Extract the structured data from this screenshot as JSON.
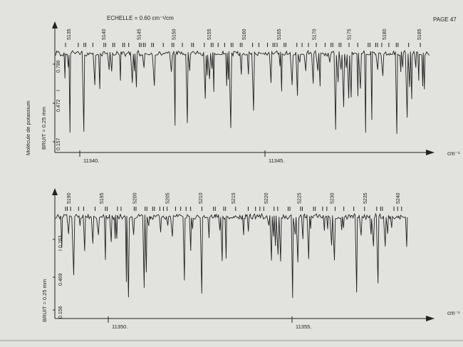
{
  "header": {
    "scale_label": "ECHELLE = 0.60 cm⁻¹/cm",
    "page_number": "PAGE 47"
  },
  "colors": {
    "background": "#e2e2df",
    "ink": "#222222"
  },
  "chart_data": [
    {
      "type": "line",
      "title": "",
      "side_label": "Molécule de potassium",
      "noise_label": "BRUIT = 0.25 mm",
      "intensity_symbol": "I",
      "xlabel": "cm⁻¹",
      "x_ticks": [
        "11340.",
        "11345."
      ],
      "y_ticks": [
        "0.786",
        "0.472",
        "0.157"
      ],
      "line_numbers": [
        "5135",
        "5140",
        "5145",
        "5150",
        "5155",
        "5160",
        "5165",
        "5170",
        "5175",
        "5180",
        "5185"
      ],
      "grid": false
    },
    {
      "type": "line",
      "title": "",
      "noise_label": "BRUIT = 0.25 mm",
      "intensity_symbol": "I",
      "xlabel": "cm⁻¹",
      "x_ticks": [
        "11350.",
        "11355."
      ],
      "y_ticks": [
        "0.783",
        "0.469",
        "0.156"
      ],
      "line_numbers": [
        "5190",
        "5195",
        "5200",
        "5205",
        "5210",
        "5215",
        "5220",
        "5225",
        "5230",
        "5235",
        "5240"
      ],
      "grid": false
    }
  ]
}
